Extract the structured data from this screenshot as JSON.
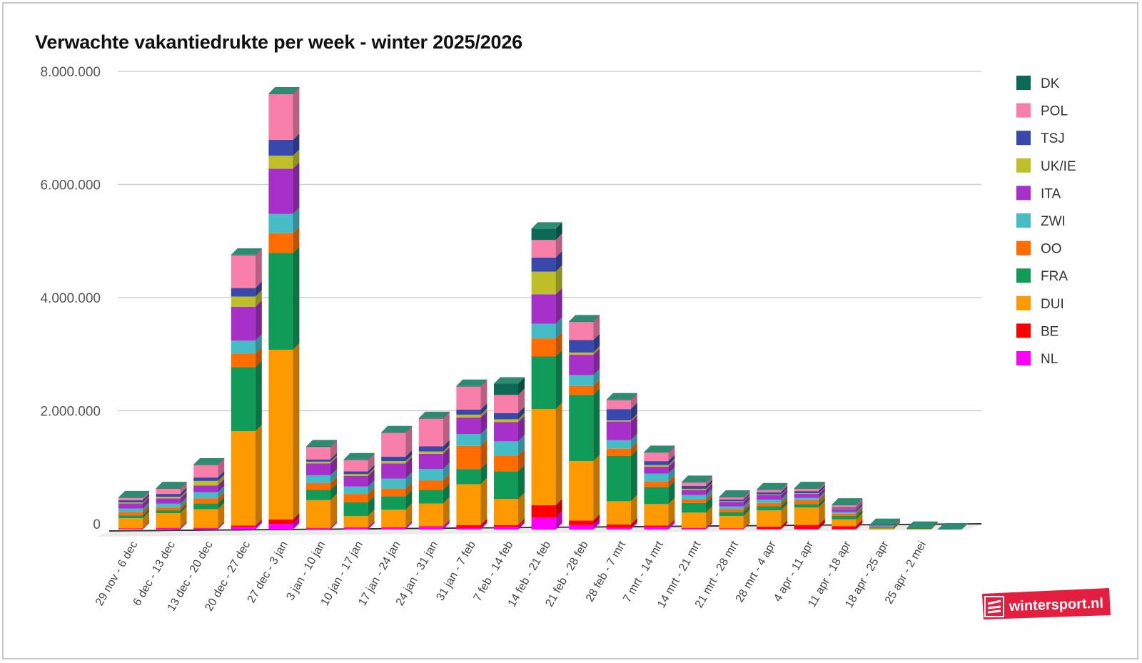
{
  "chart_data": {
    "type": "bar",
    "stacked": true,
    "title": "Verwachte vakantiedrukte per week - winter 2025/2026",
    "xlabel": "",
    "ylabel": "",
    "ylim": [
      0,
      8000000
    ],
    "yticks": [
      0,
      2000000,
      4000000,
      6000000,
      8000000
    ],
    "ytick_labels": [
      "0",
      "2.000.000",
      "4.000.000",
      "6.000.000",
      "8.000.000"
    ],
    "grid": true,
    "legend_position": "right",
    "categories": [
      "29 nov - 6 dec",
      "6 dec - 13 dec",
      "13 dec - 20 dec",
      "20 dec - 27 dec",
      "27 dec - 3 jan",
      "3 jan - 10 jan",
      "10 jan - 17 jan",
      "17 jan - 24 jan",
      "24 jan - 31 jan",
      "31 jan - 7 feb",
      "7 feb - 14 feb",
      "14 feb - 21 feb",
      "21 feb - 28 feb",
      "28 feb - 7 mrt",
      "7 mrt - 14 mrt",
      "14 mrt - 21 mrt",
      "21 mrt - 28 mrt",
      "28 mrt - 4 apr",
      "4 apr - 11 apr",
      "11 apr - 18 apr",
      "18 apr - 25 apr",
      "25 apr - 2 mei"
    ],
    "series": [
      {
        "name": "NL",
        "color": "#ff00ff",
        "values": [
          10000,
          20000,
          20000,
          50000,
          100000,
          20000,
          30000,
          30000,
          50000,
          30000,
          50000,
          210000,
          80000,
          30000,
          50000,
          20000,
          10000,
          10000,
          10000,
          10000,
          0,
          0
        ]
      },
      {
        "name": "BE",
        "color": "#ff0000",
        "values": [
          10000,
          10000,
          10000,
          20000,
          80000,
          10000,
          10000,
          10000,
          10000,
          50000,
          30000,
          220000,
          80000,
          60000,
          20000,
          10000,
          10000,
          40000,
          70000,
          50000,
          0,
          0
        ]
      },
      {
        "name": "DUI",
        "color": "#ff9900",
        "values": [
          180000,
          260000,
          330000,
          1670000,
          3000000,
          490000,
          200000,
          310000,
          400000,
          720000,
          460000,
          1700000,
          1050000,
          410000,
          380000,
          270000,
          220000,
          290000,
          310000,
          120000,
          20000,
          10000
        ]
      },
      {
        "name": "FRA",
        "color": "#109b58",
        "values": [
          50000,
          50000,
          100000,
          1130000,
          1710000,
          180000,
          240000,
          240000,
          240000,
          270000,
          490000,
          930000,
          1170000,
          800000,
          300000,
          170000,
          70000,
          70000,
          60000,
          60000,
          20000,
          10000
        ]
      },
      {
        "name": "OO",
        "color": "#ff6d01",
        "values": [
          60000,
          50000,
          90000,
          240000,
          350000,
          120000,
          150000,
          130000,
          170000,
          410000,
          280000,
          320000,
          160000,
          130000,
          100000,
          60000,
          50000,
          60000,
          70000,
          40000,
          0,
          0
        ]
      },
      {
        "name": "ZWI",
        "color": "#46bdc6",
        "values": [
          60000,
          70000,
          110000,
          230000,
          340000,
          140000,
          130000,
          180000,
          200000,
          210000,
          250000,
          260000,
          190000,
          150000,
          140000,
          80000,
          50000,
          60000,
          40000,
          30000,
          10000,
          0
        ]
      },
      {
        "name": "ITA",
        "color": "#a630c9",
        "values": [
          90000,
          90000,
          120000,
          600000,
          800000,
          210000,
          190000,
          270000,
          270000,
          290000,
          340000,
          520000,
          360000,
          330000,
          120000,
          90000,
          80000,
          80000,
          70000,
          50000,
          10000,
          0
        ]
      },
      {
        "name": "UK/IE",
        "color": "#bfbf2a",
        "values": [
          20000,
          30000,
          80000,
          180000,
          230000,
          30000,
          30000,
          40000,
          40000,
          50000,
          50000,
          400000,
          40000,
          20000,
          30000,
          20000,
          10000,
          10000,
          10000,
          10000,
          0,
          0
        ]
      },
      {
        "name": "TSJ",
        "color": "#3949ab",
        "values": [
          40000,
          50000,
          60000,
          150000,
          280000,
          40000,
          50000,
          80000,
          90000,
          90000,
          110000,
          250000,
          220000,
          200000,
          70000,
          50000,
          30000,
          40000,
          40000,
          20000,
          0,
          0
        ]
      },
      {
        "name": "POL",
        "color": "#f77faa",
        "values": [
          40000,
          90000,
          220000,
          580000,
          810000,
          220000,
          200000,
          420000,
          490000,
          410000,
          320000,
          310000,
          320000,
          160000,
          150000,
          60000,
          40000,
          40000,
          40000,
          40000,
          10000,
          0
        ]
      },
      {
        "name": "DK",
        "color": "#0b6956",
        "values": [
          10000,
          10000,
          10000,
          10000,
          10000,
          10000,
          10000,
          10000,
          10000,
          10000,
          200000,
          200000,
          10000,
          10000,
          10000,
          10000,
          10000,
          10000,
          10000,
          10000,
          10000,
          10000
        ]
      }
    ]
  },
  "legend_order": [
    "DK",
    "POL",
    "TSJ",
    "UK/IE",
    "ITA",
    "ZWI",
    "OO",
    "FRA",
    "DUI",
    "BE",
    "NL"
  ],
  "logo": {
    "text": "wintersport.nl",
    "color": "#e41e3f"
  }
}
